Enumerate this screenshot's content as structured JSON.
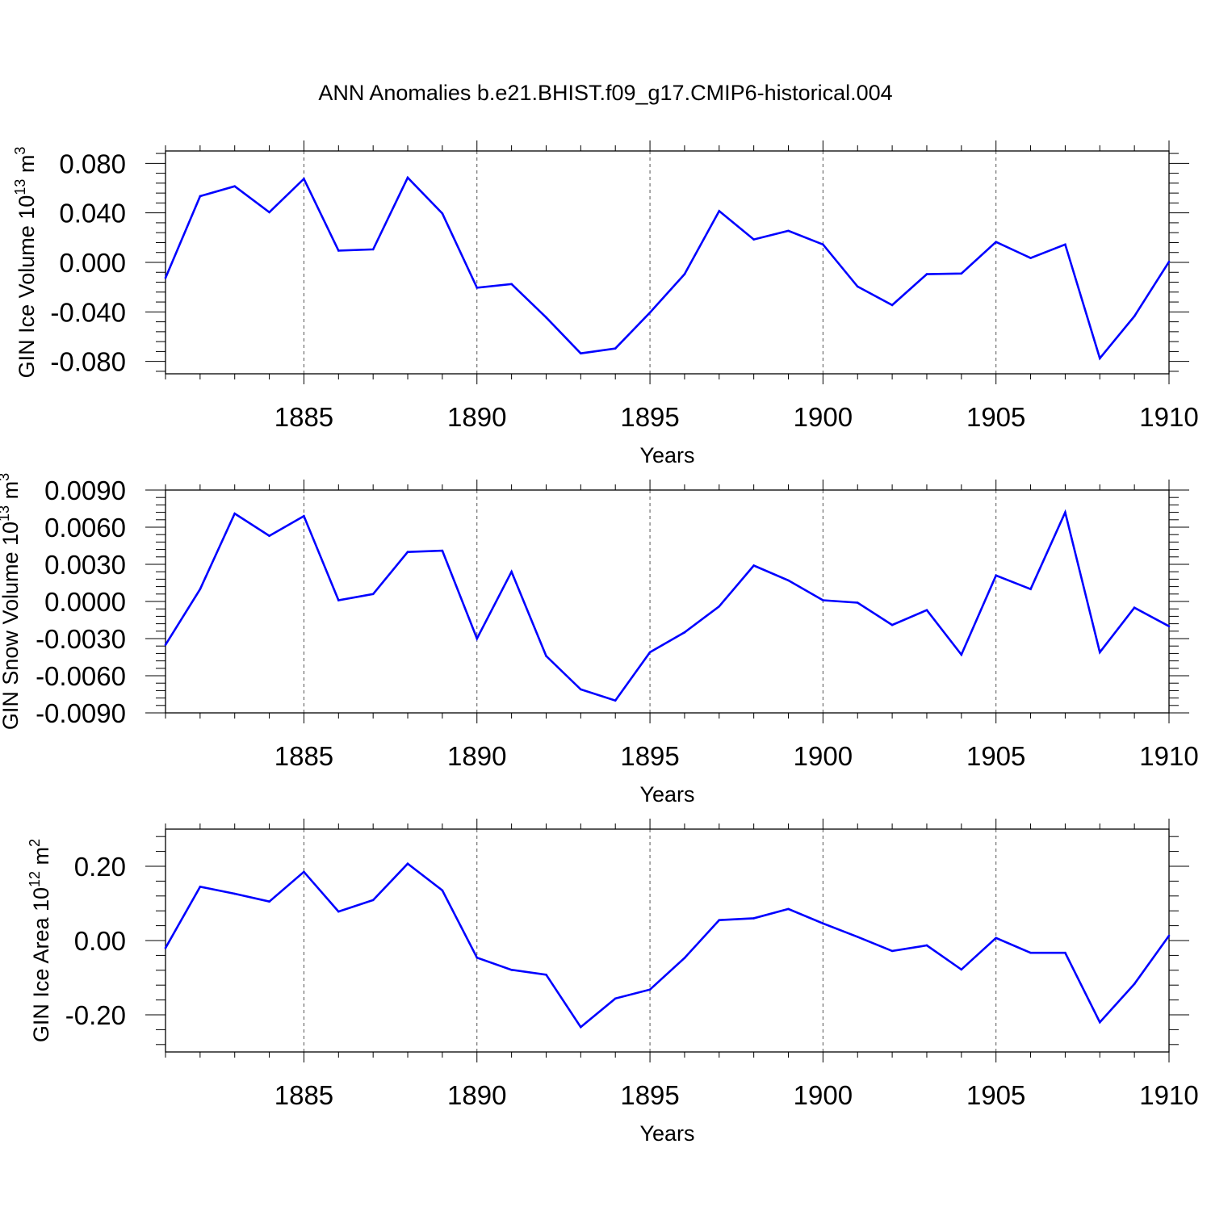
{
  "title": "ANN Anomalies b.e21.BHIST.f09_g17.CMIP6-historical.004",
  "line_color": "#0000ff",
  "chart_data": [
    {
      "type": "line",
      "ylabel_main": "GIN Ice Volume 10",
      "ylabel_exp": "13",
      "ylabel_unit": "m",
      "ylabel_unit_exp": "3",
      "xlabel": "Years",
      "xlim": [
        1881,
        1910
      ],
      "ylim": [
        -0.09,
        0.09
      ],
      "yticks": [
        -0.08,
        -0.04,
        0.0,
        0.04,
        0.08
      ],
      "ytick_labels": [
        "-0.080",
        "-0.040",
        "0.000",
        "0.040",
        "0.080"
      ],
      "xticks": [
        1885,
        1890,
        1895,
        1900,
        1905,
        1910
      ],
      "xtick_labels": [
        "1885",
        "1890",
        "1895",
        "1900",
        "1905",
        "1910"
      ],
      "x": [
        1881,
        1882,
        1883,
        1884,
        1885,
        1886,
        1887,
        1888,
        1889,
        1890,
        1891,
        1892,
        1893,
        1894,
        1895,
        1896,
        1897,
        1898,
        1899,
        1900,
        1901,
        1902,
        1903,
        1904,
        1905,
        1906,
        1907,
        1908,
        1909,
        1910
      ],
      "values": [
        -0.0125,
        0.0535,
        0.0615,
        0.0405,
        0.0675,
        0.0095,
        0.0105,
        0.0685,
        0.0395,
        -0.0205,
        -0.0175,
        -0.0445,
        -0.0735,
        -0.0695,
        -0.0405,
        -0.0095,
        0.0415,
        0.0185,
        0.0255,
        0.0145,
        -0.0195,
        -0.0345,
        -0.0095,
        -0.009,
        0.0165,
        0.0035,
        0.0145,
        -0.0775,
        -0.0435,
        0.0005
      ]
    },
    {
      "type": "line",
      "ylabel_main": "GIN Snow Volume 10",
      "ylabel_exp": "13",
      "ylabel_unit": "m",
      "ylabel_unit_exp": "3",
      "xlabel": "Years",
      "xlim": [
        1881,
        1910
      ],
      "ylim": [
        -0.009,
        0.009
      ],
      "yticks": [
        -0.009,
        -0.006,
        -0.003,
        0.0,
        0.003,
        0.006,
        0.009
      ],
      "ytick_labels": [
        "-0.0090",
        "-0.0060",
        "-0.0030",
        "0.0000",
        "0.0030",
        "0.0060",
        "0.0090"
      ],
      "xticks": [
        1885,
        1890,
        1895,
        1900,
        1905,
        1910
      ],
      "xtick_labels": [
        "1885",
        "1890",
        "1895",
        "1900",
        "1905",
        "1910"
      ],
      "x": [
        1881,
        1882,
        1883,
        1884,
        1885,
        1886,
        1887,
        1888,
        1889,
        1890,
        1891,
        1892,
        1893,
        1894,
        1895,
        1896,
        1897,
        1898,
        1899,
        1900,
        1901,
        1902,
        1903,
        1904,
        1905,
        1906,
        1907,
        1908,
        1909,
        1910
      ],
      "values": [
        -0.0035,
        0.001,
        0.0071,
        0.0053,
        0.0069,
        0.0001,
        0.0006,
        0.004,
        0.0041,
        -0.003,
        0.0024,
        -0.0044,
        -0.0071,
        -0.008,
        -0.0041,
        -0.0025,
        -0.0004,
        0.0029,
        0.0017,
        0.0001,
        -0.0001,
        -0.0019,
        -0.0007,
        -0.0043,
        0.0021,
        0.001,
        0.0072,
        -0.0041,
        -0.0005,
        -0.002
      ]
    },
    {
      "type": "line",
      "ylabel_main": "GIN Ice Area 10",
      "ylabel_exp": "12",
      "ylabel_unit": "m",
      "ylabel_unit_exp": "2",
      "xlabel": "Years",
      "xlim": [
        1881,
        1910
      ],
      "ylim": [
        -0.3,
        0.3
      ],
      "yticks": [
        -0.2,
        0.0,
        0.2
      ],
      "ytick_labels": [
        "-0.20",
        "0.00",
        "0.20"
      ],
      "xticks": [
        1885,
        1890,
        1895,
        1900,
        1905,
        1910
      ],
      "xtick_labels": [
        "1885",
        "1890",
        "1895",
        "1900",
        "1905",
        "1910"
      ],
      "x": [
        1881,
        1882,
        1883,
        1884,
        1885,
        1886,
        1887,
        1888,
        1889,
        1890,
        1891,
        1892,
        1893,
        1894,
        1895,
        1896,
        1897,
        1898,
        1899,
        1900,
        1901,
        1902,
        1903,
        1904,
        1905,
        1906,
        1907,
        1908,
        1909,
        1910
      ],
      "values": [
        -0.02,
        0.145,
        0.126,
        0.105,
        0.185,
        0.078,
        0.109,
        0.207,
        0.135,
        -0.046,
        -0.079,
        -0.092,
        -0.233,
        -0.156,
        -0.132,
        -0.047,
        0.055,
        0.06,
        0.085,
        0.046,
        0.01,
        -0.028,
        -0.013,
        -0.078,
        0.007,
        -0.033,
        -0.033,
        -0.22,
        -0.117,
        0.013
      ]
    }
  ]
}
